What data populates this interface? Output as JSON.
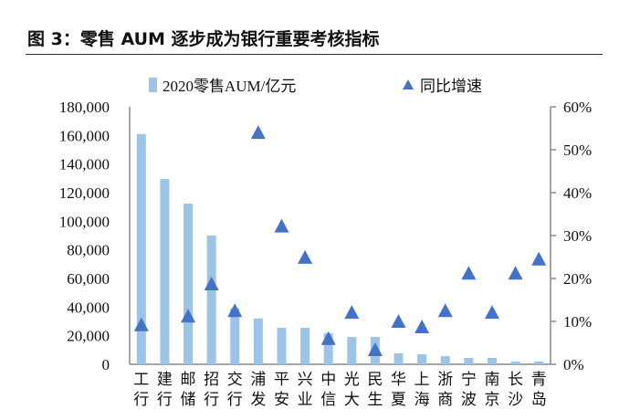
{
  "title": "图 3：零售 AUM 逐步成为银行重要考核指标",
  "chart_data": {
    "type": "bar+scatter",
    "categories": [
      "工行",
      "建行",
      "邮储",
      "招行",
      "交行",
      "浦发",
      "平安",
      "兴业",
      "中信",
      "光大",
      "民生",
      "华夏",
      "上海",
      "浙商",
      "宁波",
      "南京",
      "长沙",
      "青岛"
    ],
    "series": [
      {
        "name": "2020零售AUM/亿元",
        "type": "bar",
        "axis": "left",
        "color": "#9dc3e6",
        "values": [
          161000,
          129500,
          112300,
          90000,
          39000,
          32000,
          25500,
          25500,
          21700,
          19100,
          19100,
          7700,
          7000,
          5700,
          4500,
          4500,
          1900,
          1900
        ]
      },
      {
        "name": "同比增速",
        "type": "scatter",
        "marker": "triangle",
        "axis": "right",
        "color": "#4472c4",
        "values": [
          0.09,
          null,
          0.11,
          0.185,
          0.123,
          0.538,
          0.32,
          0.247,
          0.058,
          0.119,
          0.032,
          0.098,
          0.085,
          0.123,
          0.21,
          0.119,
          0.21,
          0.243
        ]
      }
    ],
    "left_axis": {
      "range": [
        0,
        180000
      ],
      "ticks": [
        "0",
        "20,000",
        "40,000",
        "60,000",
        "80,000",
        "100,000",
        "120,000",
        "140,000",
        "160,000",
        "180,000"
      ]
    },
    "right_axis": {
      "range": [
        0,
        0.6
      ],
      "ticks": [
        "0%",
        "10%",
        "20%",
        "30%",
        "40%",
        "50%",
        "60%"
      ]
    },
    "legend": "top",
    "grid": false
  }
}
